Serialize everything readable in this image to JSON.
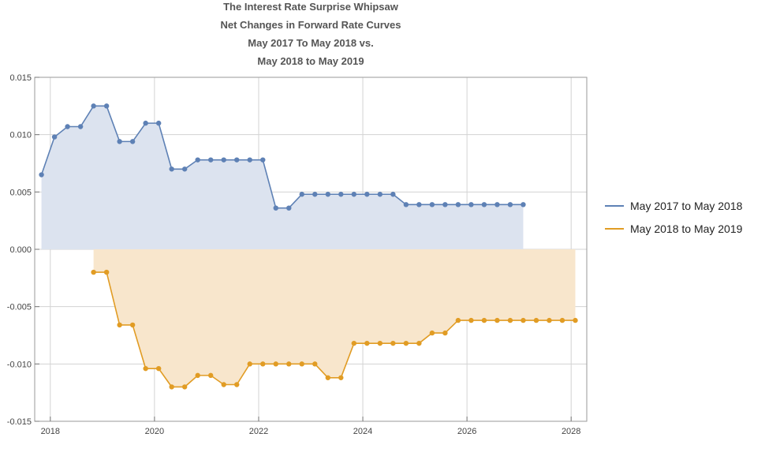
{
  "chart_data": {
    "type": "area",
    "title_lines": [
      "The Interest Rate Surprise Whipsaw",
      "Net Changes in Forward Rate Curves",
      "May 2017 To May 2018 vs.",
      "May 2018 to May 2019"
    ],
    "xlabel": "",
    "ylabel": "",
    "xlim": [
      2017.7,
      2028.3
    ],
    "ylim": [
      -0.015,
      0.015
    ],
    "x_ticks": [
      2018,
      2020,
      2022,
      2024,
      2026,
      2028
    ],
    "x_tick_labels": [
      "2018",
      "2020",
      "2022",
      "2024",
      "2026",
      "2028"
    ],
    "y_ticks": [
      -0.015,
      -0.01,
      -0.005,
      0,
      0.005,
      0.01,
      0.015
    ],
    "y_tick_labels": [
      "-0.015",
      "-0.010",
      "-0.005",
      "0.000",
      "0.005",
      "0.010",
      "0.015"
    ],
    "grid": true,
    "legend_position": "right",
    "series": [
      {
        "name": "May 2017 to May 2018",
        "color": "#5e81b5",
        "fill": "#dce3ef",
        "x": [
          2017.83,
          2018.08,
          2018.33,
          2018.58,
          2018.83,
          2019.08,
          2019.33,
          2019.58,
          2019.83,
          2020.08,
          2020.33,
          2020.58,
          2020.83,
          2021.08,
          2021.33,
          2021.58,
          2021.83,
          2022.08,
          2022.33,
          2022.58,
          2022.83,
          2023.08,
          2023.33,
          2023.58,
          2023.83,
          2024.08,
          2024.33,
          2024.58,
          2024.83,
          2025.08,
          2025.33,
          2025.58,
          2025.83,
          2026.08,
          2026.33,
          2026.58,
          2026.83,
          2027.08
        ],
        "y": [
          0.0065,
          0.0098,
          0.0107,
          0.0107,
          0.0125,
          0.0125,
          0.0094,
          0.0094,
          0.011,
          0.011,
          0.007,
          0.007,
          0.0078,
          0.0078,
          0.0078,
          0.0078,
          0.0078,
          0.0078,
          0.0036,
          0.0036,
          0.0048,
          0.0048,
          0.0048,
          0.0048,
          0.0048,
          0.0048,
          0.0048,
          0.0048,
          0.0039,
          0.0039,
          0.0039,
          0.0039,
          0.0039,
          0.0039,
          0.0039,
          0.0039,
          0.0039,
          0.0039
        ]
      },
      {
        "name": "May 2018 to May 2019",
        "color": "#e19c24",
        "fill": "#f8e6cc",
        "x": [
          2018.83,
          2019.08,
          2019.33,
          2019.58,
          2019.83,
          2020.08,
          2020.33,
          2020.58,
          2020.83,
          2021.08,
          2021.33,
          2021.58,
          2021.83,
          2022.08,
          2022.33,
          2022.58,
          2022.83,
          2023.08,
          2023.33,
          2023.58,
          2023.83,
          2024.08,
          2024.33,
          2024.58,
          2024.83,
          2025.08,
          2025.33,
          2025.58,
          2025.83,
          2026.08,
          2026.33,
          2026.58,
          2026.83,
          2027.08,
          2027.33,
          2027.58,
          2027.83,
          2028.08
        ],
        "y": [
          -0.002,
          -0.002,
          -0.0066,
          -0.0066,
          -0.0104,
          -0.0104,
          -0.012,
          -0.012,
          -0.011,
          -0.011,
          -0.0118,
          -0.0118,
          -0.01,
          -0.01,
          -0.01,
          -0.01,
          -0.01,
          -0.01,
          -0.0112,
          -0.0112,
          -0.0082,
          -0.0082,
          -0.0082,
          -0.0082,
          -0.0082,
          -0.0082,
          -0.0073,
          -0.0073,
          -0.0062,
          -0.0062,
          -0.0062,
          -0.0062,
          -0.0062,
          -0.0062,
          -0.0062,
          -0.0062,
          -0.0062,
          -0.0062
        ]
      }
    ]
  }
}
